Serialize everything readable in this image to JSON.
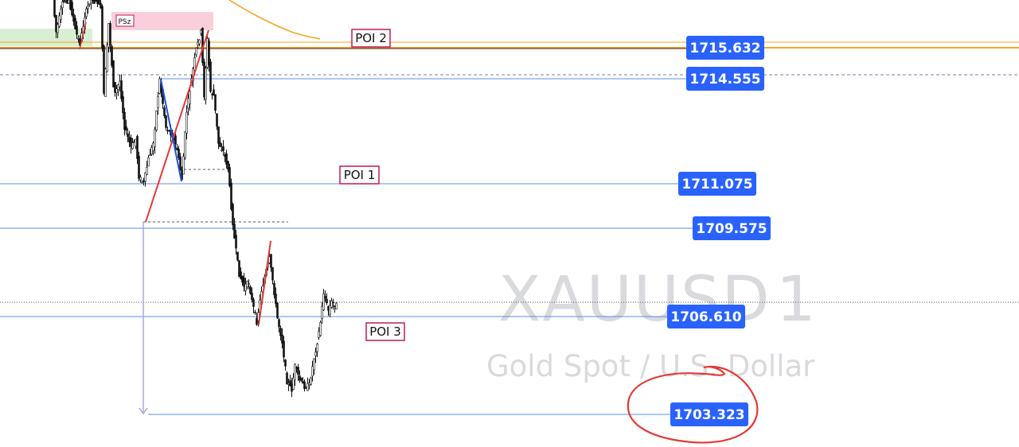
{
  "chart_data": {
    "type": "candlestick",
    "watermark": {
      "symbol": "XAUUSD",
      "interval": "1",
      "description": "Gold Spot / U.S. Dollar"
    },
    "pattern_label": "PSz",
    "y_range": [
      1702.5,
      1717.5
    ],
    "price_levels": [
      {
        "price": 1715.632,
        "label": "1715.632",
        "color": "#f5a623"
      },
      {
        "price": 1714.555,
        "label": "1714.555",
        "color": "#5b8def"
      },
      {
        "price": 1711.075,
        "label": "1711.075",
        "color": "#5b8def"
      },
      {
        "price": 1709.575,
        "label": "1709.575",
        "color": "#5b8def"
      },
      {
        "price": 1706.61,
        "label": "1706.610",
        "color": "#5b8def"
      },
      {
        "price": 1703.323,
        "label": "1703.323",
        "color": "#5b8def"
      }
    ],
    "zones": [
      {
        "label": "POI 2",
        "price": 1715.9
      },
      {
        "label": "POI 1",
        "price": 1711.3
      },
      {
        "label": "POI 3",
        "price": 1706.2
      }
    ],
    "annotations": {
      "highlighted_level": "1703.323",
      "highlight_color": "#e53935"
    },
    "colors": {
      "candles": "#111111",
      "up_swing": "#e53935",
      "down_swing": "#1e4fd8",
      "moving_average": "#f5a623",
      "tag_bg": "#2962ff"
    }
  }
}
